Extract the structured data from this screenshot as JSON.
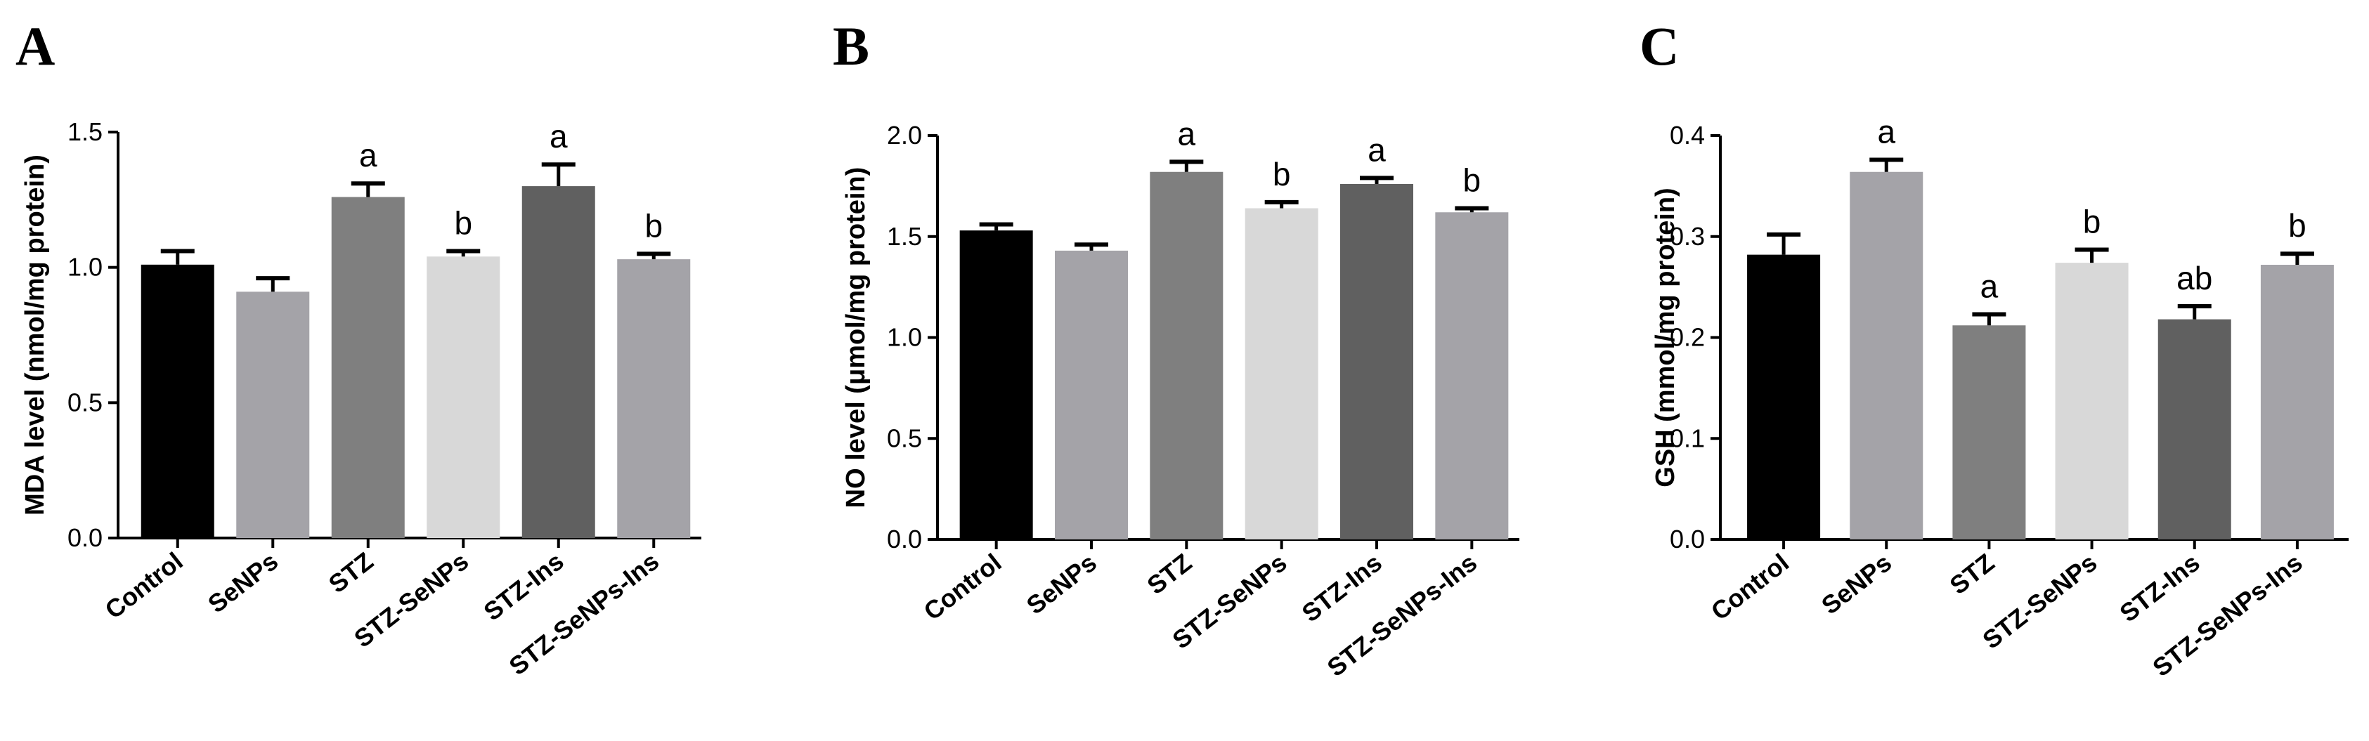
{
  "chart_data": [
    {
      "type": "bar",
      "panel": "A",
      "ylabel": "MDA level (nmol/mg protein)",
      "ylim": [
        0,
        1.5
      ],
      "yticks": [
        "0.0",
        "0.5",
        "1.0",
        "1.5"
      ],
      "categories": [
        "Control",
        "SeNPs",
        "STZ",
        "STZ-SeNPs",
        "STZ-Ins",
        "STZ-SeNPs-Ins"
      ],
      "values": [
        1.01,
        0.91,
        1.26,
        1.04,
        1.3,
        1.03
      ],
      "errors": [
        0.05,
        0.05,
        0.05,
        0.02,
        0.08,
        0.02
      ],
      "significance": [
        "",
        "",
        "a",
        "b",
        "a",
        "b"
      ],
      "colors": [
        "#000000",
        "#a4a3a8",
        "#7f7f7f",
        "#d8d8d8",
        "#606060",
        "#a4a3a8"
      ]
    },
    {
      "type": "bar",
      "panel": "B",
      "ylabel": "NO level (μmol/mg protein)",
      "ylim": [
        0,
        2.0
      ],
      "yticks": [
        "0.0",
        "0.5",
        "1.0",
        "1.5",
        "2.0"
      ],
      "categories": [
        "Control",
        "SeNPs",
        "STZ",
        "STZ-SeNPs",
        "STZ-Ins",
        "STZ-SeNPs-Ins"
      ],
      "values": [
        1.53,
        1.43,
        1.82,
        1.64,
        1.76,
        1.62
      ],
      "errors": [
        0.03,
        0.03,
        0.05,
        0.03,
        0.03,
        0.02
      ],
      "significance": [
        "",
        "",
        "a",
        "b",
        "a",
        "b"
      ],
      "colors": [
        "#000000",
        "#a4a3a8",
        "#7f7f7f",
        "#d8d8d8",
        "#606060",
        "#a4a3a8"
      ]
    },
    {
      "type": "bar",
      "panel": "C",
      "ylabel": "GSH (mmol/mg protein)",
      "ylim": [
        0,
        0.4
      ],
      "yticks": [
        "0.0",
        "0.1",
        "0.2",
        "0.3",
        "0.4"
      ],
      "categories": [
        "Control",
        "SeNPs",
        "STZ",
        "STZ-SeNPs",
        "STZ-Ins",
        "STZ-SeNPs-Ins"
      ],
      "values": [
        0.282,
        0.364,
        0.212,
        0.274,
        0.218,
        0.272
      ],
      "errors": [
        0.02,
        0.012,
        0.011,
        0.013,
        0.013,
        0.011
      ],
      "significance": [
        "",
        "a",
        "a",
        "b",
        "ab",
        "b"
      ],
      "colors": [
        "#000000",
        "#a4a3a8",
        "#7f7f7f",
        "#d8d8d8",
        "#606060",
        "#a4a3a8"
      ]
    }
  ]
}
